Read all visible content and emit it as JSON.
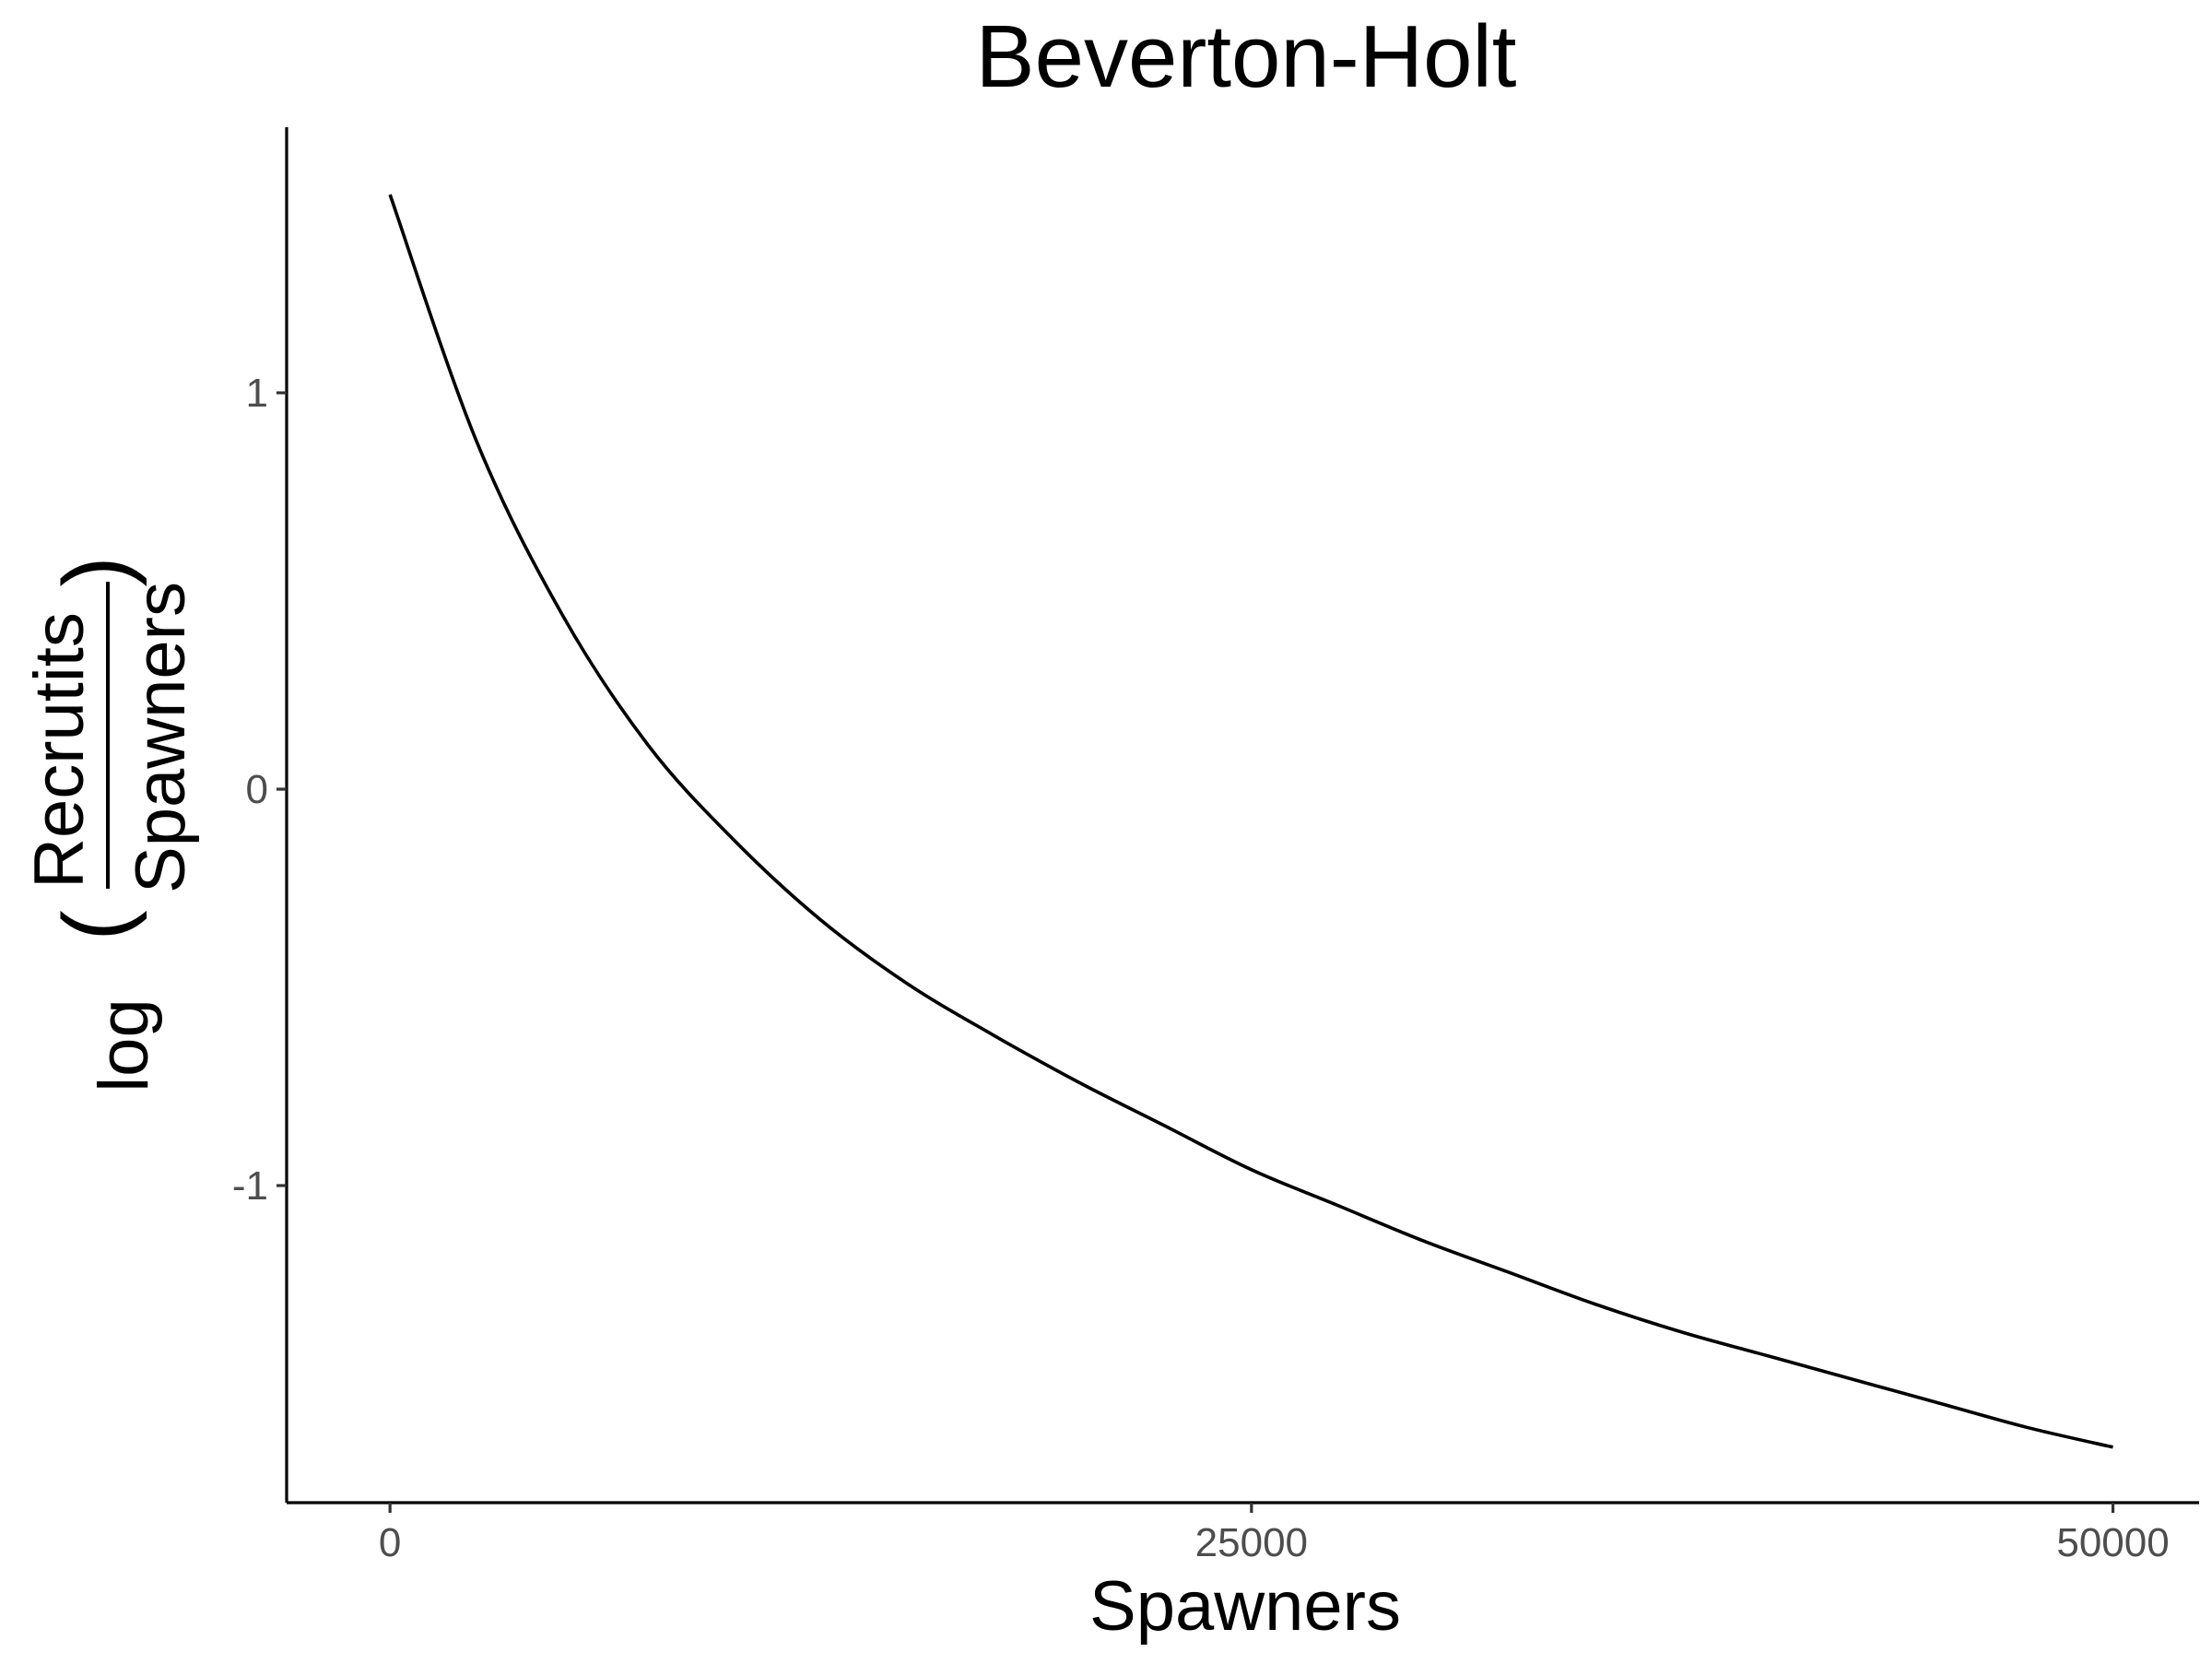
{
  "chart_data": {
    "type": "line",
    "title": "Beverton-Holt",
    "xlabel": "Spawners",
    "ylabel": {
      "prefix": "log",
      "numerator": "Recrutits",
      "denominator": "Spawners",
      "open_paren": "(",
      "close_paren": ")"
    },
    "xlim": [
      -3000,
      52500
    ],
    "ylim": [
      -1.8,
      1.67
    ],
    "x_ticks": [
      0,
      25000,
      50000
    ],
    "x_tick_labels": [
      "0",
      "25000",
      "50000"
    ],
    "y_ticks": [
      -1,
      0,
      1
    ],
    "y_tick_labels": [
      "-1",
      "0",
      "1"
    ],
    "grid": false,
    "legend": "none",
    "colors": {
      "line": "#000000",
      "axis": "#000000",
      "tick_text": "#4d4d4d"
    },
    "series": [
      {
        "x": [
          0,
          2500,
          5000,
          7500,
          10000,
          12500,
          15000,
          17500,
          20000,
          22500,
          25000,
          27500,
          30000,
          32500,
          35000,
          37500,
          40000,
          42500,
          45000,
          47500,
          50000
        ],
        "y": [
          1.5,
          0.88,
          0.44,
          0.11,
          -0.13,
          -0.33,
          -0.49,
          -0.62,
          -0.74,
          -0.85,
          -0.96,
          -1.05,
          -1.14,
          -1.22,
          -1.3,
          -1.37,
          -1.43,
          -1.49,
          -1.55,
          -1.61,
          -1.66
        ]
      }
    ]
  }
}
